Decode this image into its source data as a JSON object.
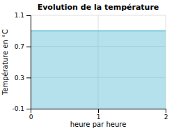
{
  "chart_data": {
    "type": "area",
    "title": "Evolution de la température",
    "xlabel": "heure par heure",
    "ylabel": "Température en °C",
    "x": [
      0,
      2
    ],
    "series": [
      {
        "values": [
          0.9,
          0.9
        ],
        "color": "#5bbdd4"
      }
    ],
    "xlim": [
      0,
      2
    ],
    "xticks": [
      0,
      1,
      2
    ],
    "ylim": [
      -0.1,
      1.1
    ],
    "yticks": [
      -0.1,
      0.3,
      0.7,
      1.1
    ],
    "grid": true
  }
}
